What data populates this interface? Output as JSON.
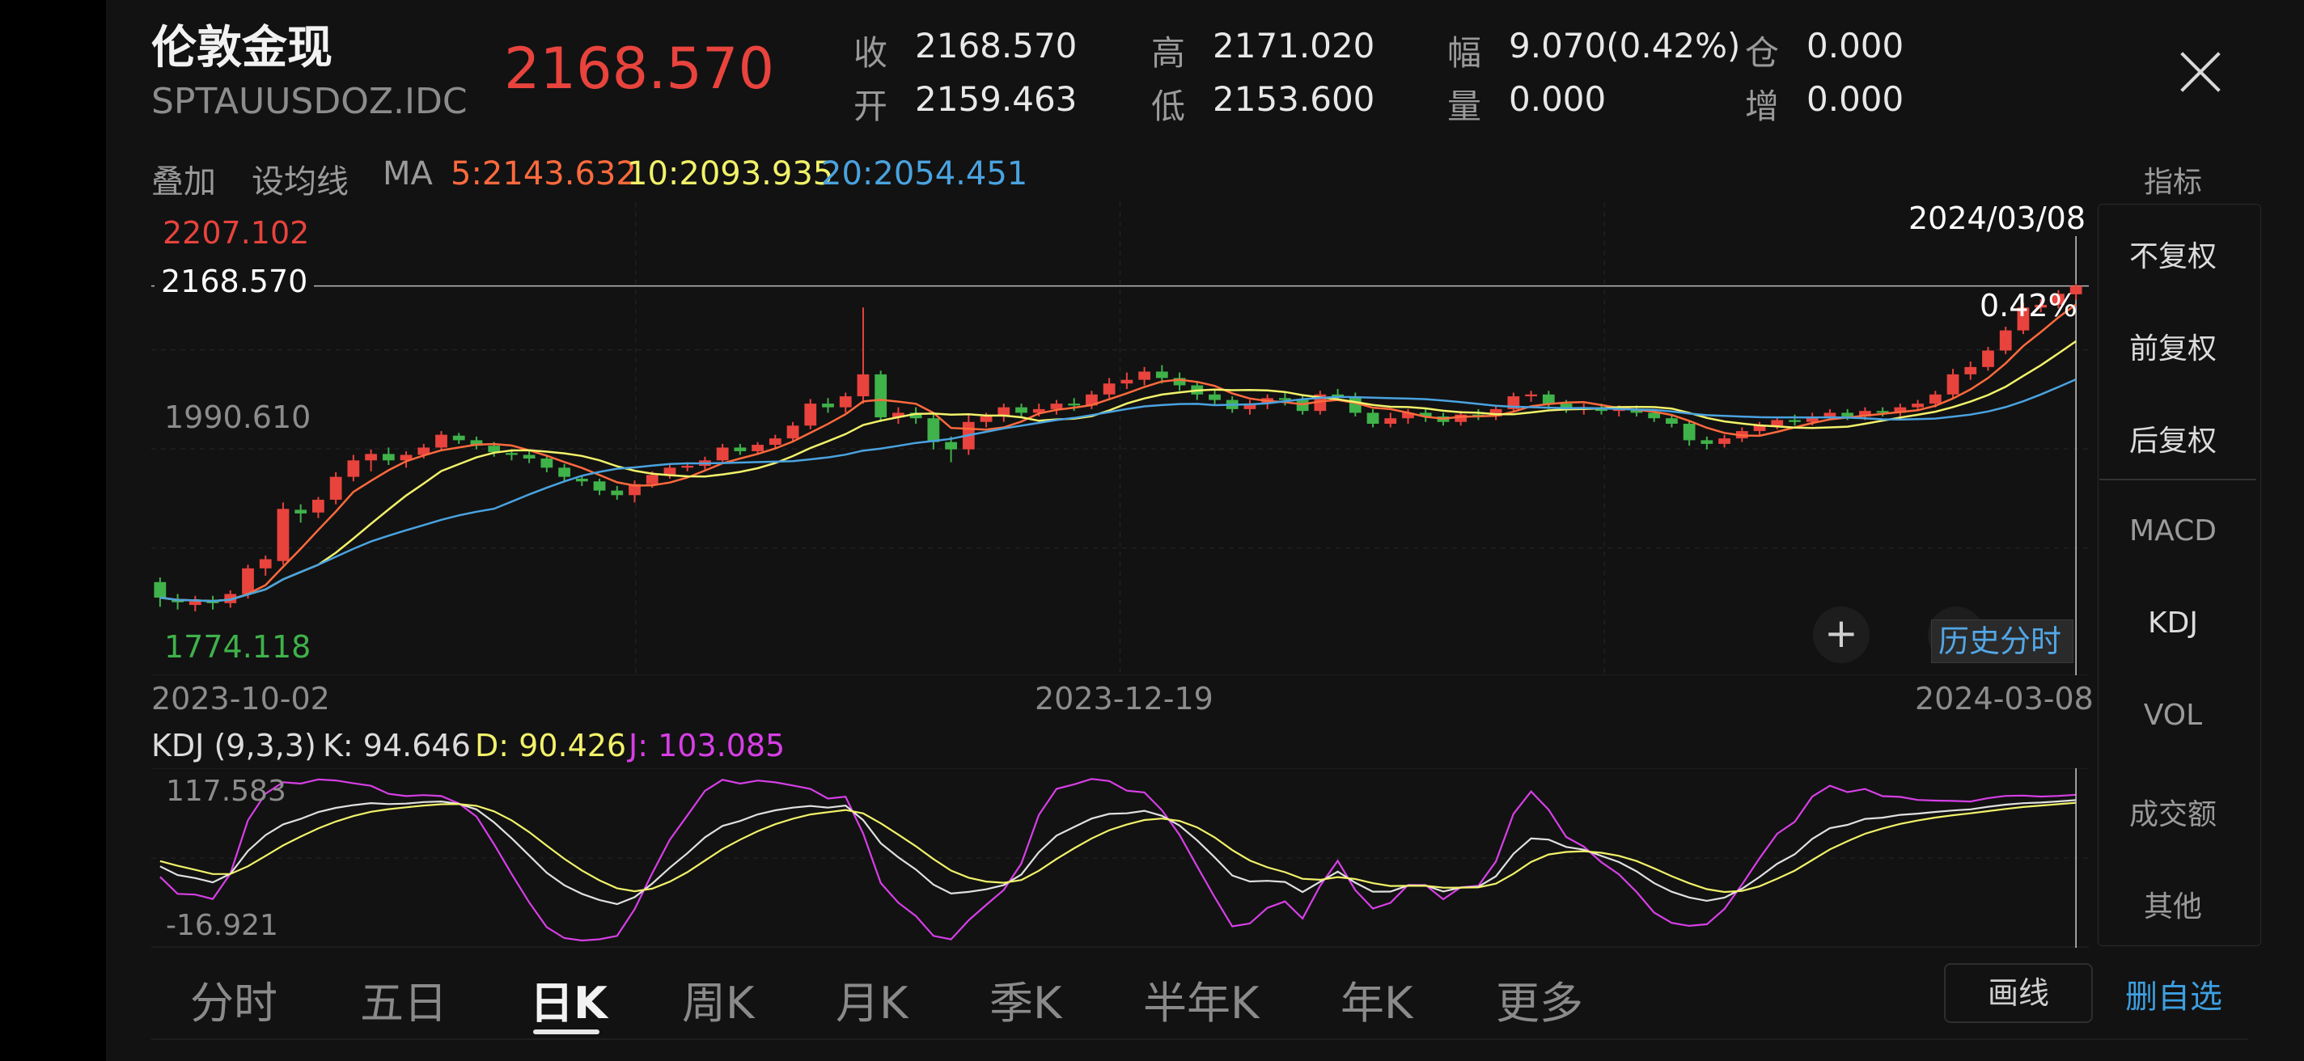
{
  "header": {
    "title": "伦敦金现",
    "code": "SPTAUUSDOZ.IDC",
    "price": "2168.570",
    "quotes": [
      {
        "label": "收",
        "value": "2168.570"
      },
      {
        "label": "高",
        "value": "2171.020"
      },
      {
        "label": "幅",
        "value": "9.070(0.42%)"
      },
      {
        "label": "仓",
        "value": "0.000"
      },
      {
        "label": "开",
        "value": "2159.463"
      },
      {
        "label": "低",
        "value": "2153.600"
      },
      {
        "label": "量",
        "value": "0.000"
      },
      {
        "label": "增",
        "value": "0.000"
      }
    ]
  },
  "ma_bar": {
    "overlay": "叠加",
    "set_ma": "设均线",
    "ma_label": "MA",
    "ma5": "5:2143.632",
    "ma10": "10:2093.935",
    "ma20": "20:2054.451"
  },
  "side_panel": {
    "indicator": "指标",
    "items": [
      "不复权",
      "前复权",
      "后复权",
      "MACD",
      "KDJ",
      "VOL",
      "成交额",
      "其他"
    ]
  },
  "chart_labels": {
    "high": "2207.102",
    "mid": "1990.610",
    "low": "1774.118",
    "current": "2168.570",
    "pct": "0.42%",
    "cursor_date": "2024/03/08",
    "dates": [
      "2023-10-02",
      "2023-12-19",
      "2024-03-08"
    ],
    "history_btn": "历史分时",
    "plus": "+"
  },
  "kdj": {
    "title": "KDJ (9,3,3)",
    "k": "K: 94.646",
    "d": "D: 90.426",
    "j": "J: 103.085",
    "top": "117.583",
    "bottom": "-16.921"
  },
  "tabs": [
    "分时",
    "五日",
    "日K",
    "周K",
    "月K",
    "季K",
    "半年K",
    "年K",
    "更多"
  ],
  "buttons": {
    "draw": "画线",
    "delete_watch": "删自选"
  },
  "colors": {
    "up": "#e8433d",
    "down": "#3fb24a",
    "ma5": "#ff6a3d",
    "ma10": "#f2f26a",
    "ma20": "#4aa3e0",
    "kdj_k": "#e0e0e0",
    "kdj_d": "#f2f26a",
    "kdj_j": "#d73fe6"
  },
  "chart_data": {
    "type": "candlestick",
    "x_start": "2023-10-02",
    "x_end": "2024-03-08",
    "ylim": [
      1774.118,
      2207.102
    ],
    "candles": [
      {
        "open": 1845,
        "close": 1828,
        "high": 1850,
        "low": 1818
      },
      {
        "open": 1826,
        "close": 1823,
        "high": 1832,
        "low": 1815
      },
      {
        "open": 1820,
        "close": 1824,
        "high": 1830,
        "low": 1813
      },
      {
        "open": 1824,
        "close": 1822,
        "high": 1830,
        "low": 1815
      },
      {
        "open": 1822,
        "close": 1832,
        "high": 1836,
        "low": 1817
      },
      {
        "open": 1832,
        "close": 1860,
        "high": 1864,
        "low": 1827
      },
      {
        "open": 1860,
        "close": 1870,
        "high": 1874,
        "low": 1852
      },
      {
        "open": 1868,
        "close": 1925,
        "high": 1932,
        "low": 1864
      },
      {
        "open": 1924,
        "close": 1920,
        "high": 1930,
        "low": 1910
      },
      {
        "open": 1921,
        "close": 1935,
        "high": 1938,
        "low": 1915
      },
      {
        "open": 1935,
        "close": 1960,
        "high": 1965,
        "low": 1930
      },
      {
        "open": 1960,
        "close": 1978,
        "high": 1984,
        "low": 1955
      },
      {
        "open": 1978,
        "close": 1985,
        "high": 1990,
        "low": 1966
      },
      {
        "open": 1985,
        "close": 1978,
        "high": 1992,
        "low": 1973
      },
      {
        "open": 1978,
        "close": 1984,
        "high": 1988,
        "low": 1970
      },
      {
        "open": 1984,
        "close": 1992,
        "high": 1996,
        "low": 1980
      },
      {
        "open": 1992,
        "close": 2006,
        "high": 2010,
        "low": 1988
      },
      {
        "open": 2005,
        "close": 2000,
        "high": 2008,
        "low": 1996
      },
      {
        "open": 2000,
        "close": 1994,
        "high": 2004,
        "low": 1990
      },
      {
        "open": 1994,
        "close": 1987,
        "high": 1998,
        "low": 1982
      },
      {
        "open": 1986,
        "close": 1984,
        "high": 1990,
        "low": 1978
      },
      {
        "open": 1984,
        "close": 1980,
        "high": 1988,
        "low": 1975
      },
      {
        "open": 1980,
        "close": 1970,
        "high": 1984,
        "low": 1965
      },
      {
        "open": 1970,
        "close": 1960,
        "high": 1974,
        "low": 1955
      },
      {
        "open": 1958,
        "close": 1955,
        "high": 1962,
        "low": 1950
      },
      {
        "open": 1955,
        "close": 1945,
        "high": 1958,
        "low": 1940
      },
      {
        "open": 1945,
        "close": 1940,
        "high": 1950,
        "low": 1935
      },
      {
        "open": 1940,
        "close": 1952,
        "high": 1956,
        "low": 1932
      },
      {
        "open": 1952,
        "close": 1962,
        "high": 1966,
        "low": 1948
      },
      {
        "open": 1962,
        "close": 1970,
        "high": 1974,
        "low": 1958
      },
      {
        "open": 1970,
        "close": 1972,
        "high": 1976,
        "low": 1966
      },
      {
        "open": 1972,
        "close": 1978,
        "high": 1982,
        "low": 1968
      },
      {
        "open": 1978,
        "close": 1992,
        "high": 1996,
        "low": 1974
      },
      {
        "open": 1992,
        "close": 1988,
        "high": 1996,
        "low": 1984
      },
      {
        "open": 1988,
        "close": 1995,
        "high": 1998,
        "low": 1984
      },
      {
        "open": 1995,
        "close": 2002,
        "high": 2006,
        "low": 1990
      },
      {
        "open": 2002,
        "close": 2016,
        "high": 2020,
        "low": 1998
      },
      {
        "open": 2016,
        "close": 2040,
        "high": 2045,
        "low": 2012
      },
      {
        "open": 2040,
        "close": 2036,
        "high": 2046,
        "low": 2030
      },
      {
        "open": 2036,
        "close": 2048,
        "high": 2052,
        "low": 2030
      },
      {
        "open": 2048,
        "close": 2072,
        "high": 2145,
        "low": 2040
      },
      {
        "open": 2072,
        "close": 2025,
        "high": 2076,
        "low": 2020
      },
      {
        "open": 2025,
        "close": 2030,
        "high": 2036,
        "low": 2018
      },
      {
        "open": 2030,
        "close": 2024,
        "high": 2036,
        "low": 2018
      },
      {
        "open": 2024,
        "close": 1998,
        "high": 2030,
        "low": 1990
      },
      {
        "open": 1998,
        "close": 1990,
        "high": 2004,
        "low": 1976
      },
      {
        "open": 1990,
        "close": 2020,
        "high": 2028,
        "low": 1984
      },
      {
        "open": 2020,
        "close": 2026,
        "high": 2030,
        "low": 2014
      },
      {
        "open": 2026,
        "close": 2036,
        "high": 2040,
        "low": 2020
      },
      {
        "open": 2036,
        "close": 2030,
        "high": 2040,
        "low": 2024
      },
      {
        "open": 2030,
        "close": 2034,
        "high": 2040,
        "low": 2026
      },
      {
        "open": 2034,
        "close": 2040,
        "high": 2044,
        "low": 2028
      },
      {
        "open": 2040,
        "close": 2038,
        "high": 2046,
        "low": 2032
      },
      {
        "open": 2038,
        "close": 2050,
        "high": 2054,
        "low": 2034
      },
      {
        "open": 2050,
        "close": 2062,
        "high": 2068,
        "low": 2046
      },
      {
        "open": 2062,
        "close": 2066,
        "high": 2074,
        "low": 2056
      },
      {
        "open": 2066,
        "close": 2075,
        "high": 2080,
        "low": 2060
      },
      {
        "open": 2075,
        "close": 2068,
        "high": 2082,
        "low": 2062
      },
      {
        "open": 2068,
        "close": 2060,
        "high": 2074,
        "low": 2054
      },
      {
        "open": 2060,
        "close": 2050,
        "high": 2064,
        "low": 2044
      },
      {
        "open": 2050,
        "close": 2044,
        "high": 2056,
        "low": 2038
      },
      {
        "open": 2044,
        "close": 2034,
        "high": 2048,
        "low": 2030
      },
      {
        "open": 2034,
        "close": 2040,
        "high": 2044,
        "low": 2028
      },
      {
        "open": 2040,
        "close": 2046,
        "high": 2050,
        "low": 2034
      },
      {
        "open": 2046,
        "close": 2044,
        "high": 2052,
        "low": 2038
      },
      {
        "open": 2044,
        "close": 2032,
        "high": 2048,
        "low": 2028
      },
      {
        "open": 2032,
        "close": 2050,
        "high": 2054,
        "low": 2028
      },
      {
        "open": 2050,
        "close": 2048,
        "high": 2056,
        "low": 2044
      },
      {
        "open": 2048,
        "close": 2030,
        "high": 2052,
        "low": 2026
      },
      {
        "open": 2030,
        "close": 2018,
        "high": 2034,
        "low": 2014
      },
      {
        "open": 2018,
        "close": 2024,
        "high": 2030,
        "low": 2014
      },
      {
        "open": 2024,
        "close": 2030,
        "high": 2034,
        "low": 2018
      },
      {
        "open": 2030,
        "close": 2026,
        "high": 2034,
        "low": 2020
      },
      {
        "open": 2026,
        "close": 2020,
        "high": 2030,
        "low": 2016
      },
      {
        "open": 2020,
        "close": 2028,
        "high": 2032,
        "low": 2016
      },
      {
        "open": 2028,
        "close": 2026,
        "high": 2034,
        "low": 2022
      },
      {
        "open": 2026,
        "close": 2034,
        "high": 2038,
        "low": 2022
      },
      {
        "open": 2034,
        "close": 2048,
        "high": 2052,
        "low": 2030
      },
      {
        "open": 2048,
        "close": 2050,
        "high": 2054,
        "low": 2042
      },
      {
        "open": 2050,
        "close": 2040,
        "high": 2054,
        "low": 2034
      },
      {
        "open": 2040,
        "close": 2034,
        "high": 2044,
        "low": 2030
      },
      {
        "open": 2034,
        "close": 2036,
        "high": 2040,
        "low": 2028
      },
      {
        "open": 2036,
        "close": 2032,
        "high": 2040,
        "low": 2028
      },
      {
        "open": 2032,
        "close": 2034,
        "high": 2038,
        "low": 2026
      },
      {
        "open": 2034,
        "close": 2030,
        "high": 2038,
        "low": 2026
      },
      {
        "open": 2030,
        "close": 2024,
        "high": 2034,
        "low": 2020
      },
      {
        "open": 2024,
        "close": 2018,
        "high": 2028,
        "low": 2014
      },
      {
        "open": 2018,
        "close": 2000,
        "high": 2022,
        "low": 1994
      },
      {
        "open": 2000,
        "close": 1996,
        "high": 2004,
        "low": 1990
      },
      {
        "open": 1996,
        "close": 2002,
        "high": 2006,
        "low": 1992
      },
      {
        "open": 2002,
        "close": 2010,
        "high": 2014,
        "low": 1998
      },
      {
        "open": 2010,
        "close": 2016,
        "high": 2020,
        "low": 2004
      },
      {
        "open": 2016,
        "close": 2022,
        "high": 2026,
        "low": 2012
      },
      {
        "open": 2022,
        "close": 2020,
        "high": 2028,
        "low": 2016
      },
      {
        "open": 2020,
        "close": 2026,
        "high": 2030,
        "low": 2016
      },
      {
        "open": 2026,
        "close": 2030,
        "high": 2034,
        "low": 2022
      },
      {
        "open": 2030,
        "close": 2026,
        "high": 2034,
        "low": 2022
      },
      {
        "open": 2026,
        "close": 2032,
        "high": 2036,
        "low": 2022
      },
      {
        "open": 2032,
        "close": 2030,
        "high": 2036,
        "low": 2026
      },
      {
        "open": 2030,
        "close": 2036,
        "high": 2040,
        "low": 2026
      },
      {
        "open": 2036,
        "close": 2040,
        "high": 2044,
        "low": 2032
      },
      {
        "open": 2040,
        "close": 2050,
        "high": 2054,
        "low": 2036
      },
      {
        "open": 2050,
        "close": 2072,
        "high": 2078,
        "low": 2046
      },
      {
        "open": 2072,
        "close": 2080,
        "high": 2086,
        "low": 2066
      },
      {
        "open": 2080,
        "close": 2098,
        "high": 2102,
        "low": 2076
      },
      {
        "open": 2098,
        "close": 2120,
        "high": 2124,
        "low": 2094
      },
      {
        "open": 2120,
        "close": 2145,
        "high": 2150,
        "low": 2116
      },
      {
        "open": 2145,
        "close": 2148,
        "high": 2154,
        "low": 2140
      },
      {
        "open": 2148,
        "close": 2160,
        "high": 2164,
        "low": 2144
      },
      {
        "open": 2159.463,
        "close": 2168.57,
        "high": 2171.02,
        "low": 2153.6
      }
    ],
    "ma_series": [
      {
        "name": "MA5",
        "last": 2143.632
      },
      {
        "name": "MA10",
        "last": 2093.935
      },
      {
        "name": "MA20",
        "last": 2054.451
      }
    ],
    "kdj_series": [
      {
        "name": "K",
        "last": 94.646
      },
      {
        "name": "D",
        "last": 90.426
      },
      {
        "name": "J",
        "last": 103.085
      }
    ],
    "kdj_ylim": [
      -16.921,
      117.583
    ]
  }
}
